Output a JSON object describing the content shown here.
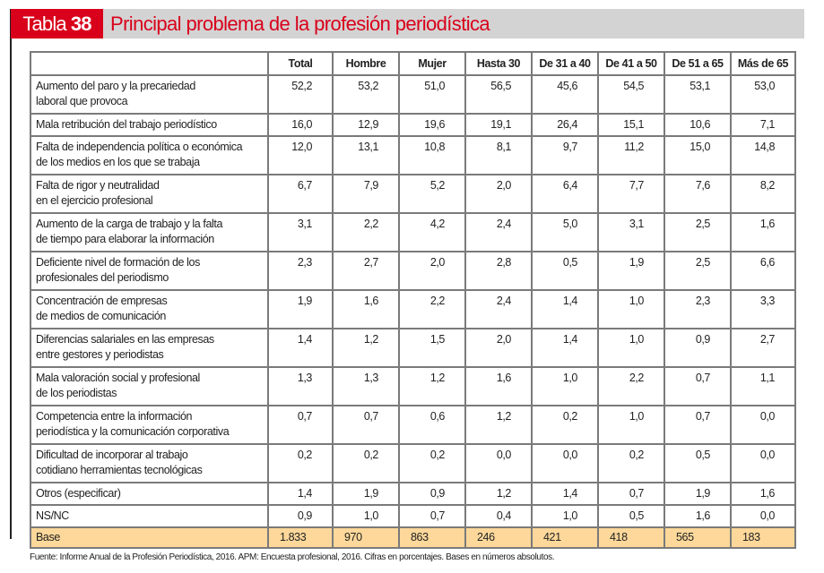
{
  "title": {
    "tag_word": "Tabla",
    "tag_number": "38",
    "text": "Principal problema de la profesión periodística"
  },
  "columns": [
    "Total",
    "Hombre",
    "Mujer",
    "Hasta 30",
    "De 31 a 40",
    "De 41 a 50",
    "De 51 a 65",
    "Más de 65"
  ],
  "rows": [
    {
      "label": [
        "Aumento del paro y la precariedad",
        "laboral que provoca"
      ],
      "values": [
        "52,2",
        "53,2",
        "51,0",
        "56,5",
        "45,6",
        "54,5",
        "53,1",
        "53,0"
      ]
    },
    {
      "label": [
        "Mala retribución del trabajo periodístico"
      ],
      "values": [
        "16,0",
        "12,9",
        "19,6",
        "19,1",
        "26,4",
        "15,1",
        "10,6",
        "7,1"
      ]
    },
    {
      "label": [
        "Falta de independencia política o económica",
        "de los medios en los que se trabaja"
      ],
      "values": [
        "12,0",
        "13,1",
        "10,8",
        "8,1",
        "9,7",
        "11,2",
        "15,0",
        "14,8"
      ]
    },
    {
      "label": [
        "Falta de rigor y neutralidad",
        "en el ejercicio profesional"
      ],
      "values": [
        "6,7",
        "7,9",
        "5,2",
        "2,0",
        "6,4",
        "7,7",
        "7,6",
        "8,2"
      ]
    },
    {
      "label": [
        "Aumento de la carga de trabajo y la falta",
        "de tiempo para elaborar la información"
      ],
      "values": [
        "3,1",
        "2,2",
        "4,2",
        "2,4",
        "5,0",
        "3,1",
        "2,5",
        "1,6"
      ]
    },
    {
      "label": [
        "Deficiente nivel de formación de los",
        "profesionales del periodismo"
      ],
      "values": [
        "2,3",
        "2,7",
        "2,0",
        "2,8",
        "0,5",
        "1,9",
        "2,5",
        "6,6"
      ]
    },
    {
      "label": [
        "Concentración de empresas",
        "de medios de comunicación"
      ],
      "values": [
        "1,9",
        "1,6",
        "2,2",
        "2,4",
        "1,4",
        "1,0",
        "2,3",
        "3,3"
      ]
    },
    {
      "label": [
        "Diferencias salariales en las empresas",
        "entre gestores y periodistas"
      ],
      "values": [
        "1,4",
        "1,2",
        "1,5",
        "2,0",
        "1,4",
        "1,0",
        "0,9",
        "2,7"
      ]
    },
    {
      "label": [
        "Mala valoración social y profesional",
        "de los periodistas"
      ],
      "values": [
        "1,3",
        "1,3",
        "1,2",
        "1,6",
        "1,0",
        "2,2",
        "0,7",
        "1,1"
      ]
    },
    {
      "label": [
        "Competencia entre la información",
        "periodística y la comunicación corporativa"
      ],
      "values": [
        "0,7",
        "0,7",
        "0,6",
        "1,2",
        "0,2",
        "1,0",
        "0,7",
        "0,0"
      ]
    },
    {
      "label": [
        "Dificultad de incorporar al trabajo",
        "cotidiano herramientas tecnológicas"
      ],
      "values": [
        "0,2",
        "0,2",
        "0,2",
        "0,0",
        "0,0",
        "0,2",
        "0,5",
        "0,0"
      ]
    },
    {
      "label": [
        "Otros (especificar)"
      ],
      "values": [
        "1,4",
        "1,9",
        "0,9",
        "1,2",
        "1,4",
        "0,7",
        "1,9",
        "1,6"
      ]
    },
    {
      "label": [
        "NS/NC"
      ],
      "values": [
        "0,9",
        "1,0",
        "0,7",
        "0,4",
        "1,0",
        "0,5",
        "1,6",
        "0,0"
      ]
    }
  ],
  "base": {
    "label": "Base",
    "values": [
      "1.833",
      "970",
      "863",
      "246",
      "421",
      "418",
      "565",
      "183"
    ]
  },
  "colors": {
    "brand_red": "#d9001b",
    "title_bg": "#d3d3d3",
    "base_bg": "#fdd89a"
  },
  "source": "Fuente: Informe Anual de la Profesión Periodística, 2016. APM: Encuesta profesional, 2016. Cifras en porcentajes. Bases en números absolutos."
}
